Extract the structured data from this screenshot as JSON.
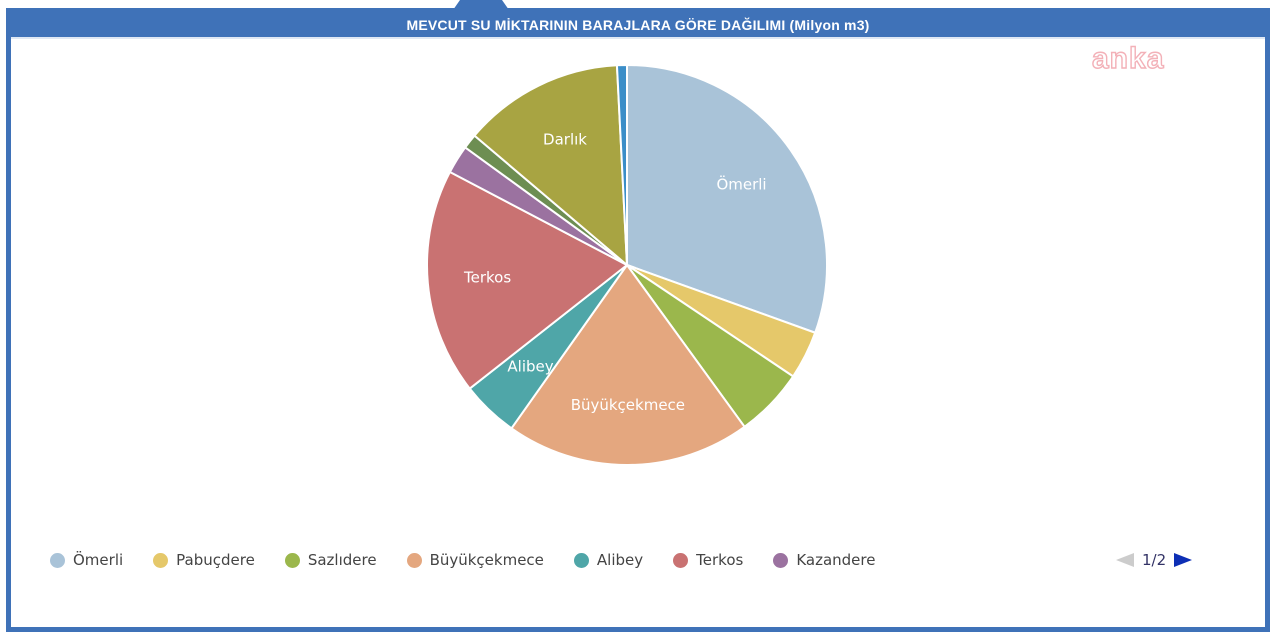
{
  "watermark": "anka",
  "pagination": {
    "text": "1/2"
  },
  "chart_data": {
    "type": "pie",
    "title": "MEVCUT SU MİKTARININ BARAJLARA GÖRE DAĞILIMI (Milyon m3)",
    "legend_position": "bottom",
    "slices": [
      {
        "name": "Ömerli",
        "value": 30.5,
        "color": "#a9c3d8",
        "label": "Ömerli"
      },
      {
        "name": "Pabuçdere",
        "value": 3.9,
        "color": "#e5c86a",
        "label": ""
      },
      {
        "name": "Sazlıdere",
        "value": 5.6,
        "color": "#9bb74c",
        "label": ""
      },
      {
        "name": "Büyükçekmece",
        "value": 19.8,
        "color": "#e4a77f",
        "label": "Büyükçekmece"
      },
      {
        "name": "Alibey",
        "value": 4.6,
        "color": "#4fa6a8",
        "label": "Alibey"
      },
      {
        "name": "Terkos",
        "value": 18.3,
        "color": "#c97272",
        "label": "Terkos"
      },
      {
        "name": "Kazandere",
        "value": 2.3,
        "color": "#9b72a0",
        "label": ""
      },
      {
        "name": "",
        "value": 1.2,
        "color": "#6d8e52",
        "label": ""
      },
      {
        "name": "Darlık",
        "value": 13.0,
        "color": "#a8a442",
        "label": "Darlık"
      },
      {
        "name": "",
        "value": 0.8,
        "color": "#3b8ec8",
        "label": ""
      }
    ],
    "legend": [
      {
        "name": "Ömerli",
        "color": "#a9c3d8"
      },
      {
        "name": "Pabuçdere",
        "color": "#e5c86a"
      },
      {
        "name": "Sazlıdere",
        "color": "#9bb74c"
      },
      {
        "name": "Büyükçekmece",
        "color": "#e4a77f"
      },
      {
        "name": "Alibey",
        "color": "#4fa6a8"
      },
      {
        "name": "Terkos",
        "color": "#c97272"
      },
      {
        "name": "Kazandere",
        "color": "#9b72a0"
      }
    ]
  }
}
